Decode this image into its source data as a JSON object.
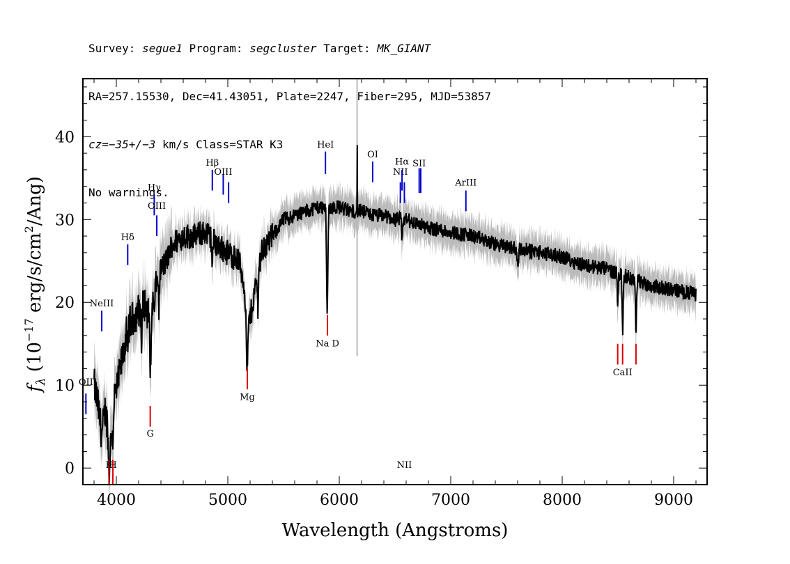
{
  "header": {
    "survey_label": "Survey: ",
    "survey": "segue1",
    "program_label": " Program: ",
    "program": "segcluster",
    "target_label": " Target: ",
    "target": "MK_GIANT",
    "line2": "RA=257.15530, Dec=41.43051, Plate=2247, Fiber=295, MJD=53857",
    "cz_label": "cz",
    "cz_value": "=−35+/−3",
    "cz_rest": " km/s Class=STAR K3",
    "line4": "No warnings."
  },
  "chart_data": {
    "type": "line",
    "title": "",
    "xlabel": "Wavelength (Angstroms)",
    "ylabel_main": "f",
    "ylabel_sub": "λ",
    "ylabel_rest_1": " (10",
    "ylabel_exp": "−17",
    "ylabel_rest_2": " erg/s/cm",
    "ylabel_exp2": "2",
    "ylabel_rest_3": "/Ang)",
    "xlim": [
      3700,
      9300
    ],
    "ylim": [
      -2,
      47
    ],
    "x_ticks": [
      4000,
      5000,
      6000,
      7000,
      8000,
      9000
    ],
    "y_ticks": [
      0,
      10,
      20,
      30,
      40
    ],
    "x_tick_labels": [
      "4000",
      "5000",
      "6000",
      "7000",
      "8000",
      "9000"
    ],
    "y_tick_labels": [
      "0",
      "10",
      "20",
      "30",
      "40"
    ],
    "spectrum_color": "#000000",
    "noise_color": "#bbbbbb",
    "emission_color": "#0000cc",
    "absorption_color": "#dd0000",
    "continuum_knots": [
      [
        3800,
        10
      ],
      [
        3830,
        8
      ],
      [
        3870,
        4
      ],
      [
        3900,
        7
      ],
      [
        3950,
        3
      ],
      [
        3970,
        9
      ],
      [
        4000,
        9
      ],
      [
        4050,
        13
      ],
      [
        4100,
        17
      ],
      [
        4150,
        18
      ],
      [
        4200,
        19
      ],
      [
        4250,
        20
      ],
      [
        4300,
        18
      ],
      [
        4350,
        22
      ],
      [
        4400,
        24
      ],
      [
        4450,
        25
      ],
      [
        4500,
        27
      ],
      [
        4600,
        28
      ],
      [
        4700,
        28
      ],
      [
        4800,
        28.5
      ],
      [
        4900,
        27
      ],
      [
        5000,
        26
      ],
      [
        5100,
        25
      ],
      [
        5150,
        22
      ],
      [
        5200,
        18
      ],
      [
        5250,
        22
      ],
      [
        5300,
        26
      ],
      [
        5400,
        28
      ],
      [
        5500,
        30
      ],
      [
        5600,
        30.5
      ],
      [
        5700,
        31
      ],
      [
        5800,
        31.5
      ],
      [
        5900,
        31.5
      ],
      [
        6000,
        31.5
      ],
      [
        6100,
        31
      ],
      [
        6200,
        31
      ],
      [
        6300,
        30.5
      ],
      [
        6400,
        30.5
      ],
      [
        6500,
        30
      ],
      [
        6600,
        30
      ],
      [
        6700,
        29.5
      ],
      [
        6800,
        29
      ],
      [
        7000,
        28.5
      ],
      [
        7200,
        28
      ],
      [
        7400,
        27
      ],
      [
        7600,
        26.5
      ],
      [
        7800,
        26
      ],
      [
        8000,
        25.5
      ],
      [
        8200,
        24.5
      ],
      [
        8400,
        24
      ],
      [
        8600,
        23
      ],
      [
        8800,
        22
      ],
      [
        9000,
        21.5
      ],
      [
        9200,
        21
      ]
    ],
    "absorption_features": [
      {
        "x": 3934,
        "depth": 5,
        "width": 8
      },
      {
        "x": 3969,
        "depth": 5,
        "width": 8
      },
      {
        "x": 4102,
        "depth": 4,
        "width": 6
      },
      {
        "x": 4227,
        "depth": 5,
        "width": 6
      },
      {
        "x": 4307,
        "depth": 7,
        "width": 8
      },
      {
        "x": 4340,
        "depth": 3,
        "width": 6
      },
      {
        "x": 4383,
        "depth": 4,
        "width": 5
      },
      {
        "x": 4861,
        "depth": 3,
        "width": 6
      },
      {
        "x": 5173,
        "depth": 8,
        "width": 12
      },
      {
        "x": 5270,
        "depth": 4,
        "width": 6
      },
      {
        "x": 5892,
        "depth": 13,
        "width": 8
      },
      {
        "x": 6563,
        "depth": 3,
        "width": 5
      },
      {
        "x": 7600,
        "depth": 2,
        "width": 10
      },
      {
        "x": 8498,
        "depth": 4,
        "width": 5
      },
      {
        "x": 8542,
        "depth": 7,
        "width": 6
      },
      {
        "x": 8662,
        "depth": 7,
        "width": 6
      }
    ],
    "spikes": [
      {
        "x": 6160,
        "value": 39
      }
    ],
    "emission_lines": [
      {
        "label": "OII",
        "x": 3727,
        "y_top": 9,
        "y_bot": 6.5,
        "label_y": 10
      },
      {
        "label": "NeIII",
        "x": 3869,
        "y_top": 19,
        "y_bot": 16.5,
        "label_y": 19.5
      },
      {
        "label": "Hδ",
        "x": 4102,
        "y_top": 27,
        "y_bot": 24.5,
        "label_y": 27.5
      },
      {
        "label": "Hγ",
        "x": 4340,
        "y_top": 33,
        "y_bot": 30.5,
        "label_y": 33.5
      },
      {
        "label": "OIII",
        "x": 4363,
        "y_top": 30.5,
        "y_bot": 28,
        "label_y": 31.3
      },
      {
        "label": "Hβ",
        "x": 4861,
        "y_top": 36,
        "y_bot": 33.5,
        "label_y": 36.5
      },
      {
        "label": "OIII",
        "x": 4959,
        "y_top": 35.5,
        "y_bot": 33,
        "label_y": 35.4
      },
      {
        "label": "",
        "x": 5007,
        "y_top": 34.5,
        "y_bot": 32,
        "label_y": 0
      },
      {
        "label": "HeI",
        "x": 5876,
        "y_top": 38.2,
        "y_bot": 35.5,
        "label_y": 38.7
      },
      {
        "label": "OI",
        "x": 6300,
        "y_top": 37,
        "y_bot": 34.5,
        "label_y": 37.5
      },
      {
        "label": "NII",
        "x": 6548,
        "y_top": 34.5,
        "y_bot": 32,
        "label_y": 35.4
      },
      {
        "label": "Hα",
        "x": 6563,
        "y_top": 36,
        "y_bot": 33.5,
        "label_y": 36.6
      },
      {
        "label": "NII",
        "x": 6584,
        "y_top": 34.5,
        "y_bot": 32,
        "label_y": 0
      },
      {
        "label": "SII",
        "x": 6717,
        "y_top": 36.2,
        "y_bot": 33.2,
        "label_y": 36.4
      },
      {
        "label": "",
        "x": 6731,
        "y_top": 36.2,
        "y_bot": 33.2,
        "label_y": 0
      },
      {
        "label": "ArIII",
        "x": 7136,
        "y_top": 33.5,
        "y_bot": 31,
        "label_y": 34.1
      }
    ],
    "absorption_lines": [
      {
        "label": "K",
        "x": 3934,
        "y_top": 1,
        "y_bot": -2,
        "label_y": 0
      },
      {
        "label": "H",
        "x": 3969,
        "y_top": 1,
        "y_bot": -2,
        "label_y": 0
      },
      {
        "label": "G",
        "x": 4304,
        "y_top": 7.5,
        "y_bot": 5,
        "label_y": 3.8
      },
      {
        "label": "Mg",
        "x": 5175,
        "y_top": 12,
        "y_bot": 9.5,
        "label_y": 8.2
      },
      {
        "label": "Na D",
        "x": 5894,
        "y_top": 18.5,
        "y_bot": 16,
        "label_y": 14.7
      },
      {
        "label": "",
        "x": 8498,
        "y_top": 15,
        "y_bot": 12.5,
        "label_y": 0
      },
      {
        "label": "CaII",
        "x": 8542,
        "y_top": 15,
        "y_bot": 12.5,
        "label_y": 11.2
      },
      {
        "label": "",
        "x": 8662,
        "y_top": 15,
        "y_bot": 12.5,
        "label_y": 0
      }
    ]
  }
}
